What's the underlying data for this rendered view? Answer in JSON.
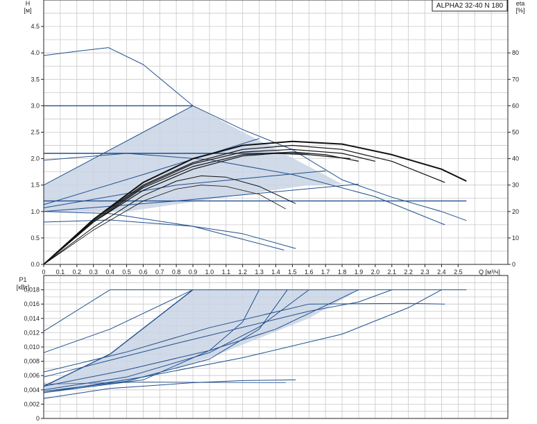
{
  "title": "ALPHA2 32-40 N 180",
  "chart_data": [
    {
      "type": "line",
      "id": "head",
      "ylabel": "H",
      "yunit": "[м]",
      "y2label": "eta",
      "y2unit": "[%]",
      "xlabel": "Q [м³/ч]",
      "xlim": [
        0,
        2.8
      ],
      "ylim": [
        0,
        5.0
      ],
      "y2lim": [
        0,
        100
      ],
      "xticks": [
        "0",
        "0.1",
        "0.2",
        "0.3",
        "0.4",
        "0.5",
        "0.6",
        "0.7",
        "0.8",
        "0.9",
        "1.0",
        "1.1",
        "1.2",
        "1.3",
        "1.4",
        "1.5",
        "1.6",
        "1.7",
        "1.8",
        "1.9",
        "2.0",
        "2.1",
        "2.2",
        "2.3",
        "2.4",
        "2.5"
      ],
      "yticks": [
        "0.0",
        "0.5",
        "1.0",
        "1.5",
        "2.0",
        "2.5",
        "3.0",
        "3.5",
        "4.0",
        "4.5"
      ],
      "y2ticks": [
        "0",
        "10",
        "20",
        "30",
        "40",
        "50",
        "60",
        "70",
        "80"
      ],
      "grid": true,
      "areas": [
        {
          "name": "proportional-pressure-band",
          "points": [
            [
              0,
              1.5
            ],
            [
              0.9,
              3.0
            ],
            [
              1.8,
              1.52
            ],
            [
              1.6,
              1.5
            ],
            [
              0.5,
              1.0
            ],
            [
              0,
              1.0
            ]
          ]
        }
      ],
      "series": [
        {
          "kind": "pump",
          "width": 1.0,
          "points": [
            [
              0,
              3.95
            ],
            [
              0.2,
              4.03
            ],
            [
              0.39,
              4.1
            ],
            [
              0.6,
              3.78
            ],
            [
              0.9,
              3.0
            ],
            [
              1.2,
              2.55
            ],
            [
              1.5,
              2.17
            ],
            [
              1.8,
              1.6
            ],
            [
              2.1,
              1.27
            ],
            [
              2.4,
              1.0
            ],
            [
              2.55,
              0.83
            ]
          ]
        },
        {
          "kind": "pump",
          "width": 1.4,
          "points": [
            [
              0,
              3.0
            ],
            [
              0.9,
              3.0
            ]
          ]
        },
        {
          "kind": "pump",
          "width": 1.4,
          "points": [
            [
              0,
              2.1
            ],
            [
              1.6,
              2.1
            ]
          ]
        },
        {
          "kind": "pump",
          "width": 1.4,
          "points": [
            [
              0,
              1.2
            ],
            [
              2.55,
              1.2
            ]
          ]
        },
        {
          "kind": "pump",
          "width": 1.0,
          "points": [
            [
              0,
              1.5
            ],
            [
              0.9,
              3.0
            ]
          ]
        },
        {
          "kind": "pump",
          "width": 1.0,
          "points": [
            [
              0,
              1.13
            ],
            [
              0.6,
              1.7
            ],
            [
              1.3,
              2.38
            ]
          ]
        },
        {
          "kind": "pump",
          "width": 1.0,
          "points": [
            [
              0,
              1.07
            ],
            [
              0.8,
              1.5
            ],
            [
              1.7,
              1.77
            ]
          ]
        },
        {
          "kind": "pump",
          "width": 1.0,
          "points": [
            [
              0,
              1.0
            ],
            [
              0.8,
              1.2
            ],
            [
              1.9,
              1.52
            ]
          ]
        },
        {
          "kind": "pump",
          "width": 1.0,
          "points": [
            [
              0,
              1.97
            ],
            [
              0.5,
              2.1
            ],
            [
              1.0,
              1.98
            ],
            [
              1.5,
              1.7
            ],
            [
              2.0,
              1.28
            ],
            [
              2.42,
              0.75
            ]
          ]
        },
        {
          "kind": "pump",
          "width": 1.0,
          "points": [
            [
              0,
              0.8
            ],
            [
              0.4,
              0.84
            ],
            [
              0.9,
              0.72
            ],
            [
              1.2,
              0.58
            ],
            [
              1.52,
              0.3
            ]
          ]
        },
        {
          "kind": "pump",
          "width": 1.0,
          "points": [
            [
              0,
              1.0
            ],
            [
              0.4,
              0.96
            ],
            [
              0.9,
              0.72
            ],
            [
              1.45,
              0.27
            ]
          ]
        },
        {
          "kind": "eta",
          "width": 2.0,
          "points": [
            [
              0,
              0
            ],
            [
              0.3,
              17
            ],
            [
              0.6,
              31
            ],
            [
              0.9,
              40
            ],
            [
              1.2,
              45
            ],
            [
              1.5,
              46.5
            ],
            [
              1.8,
              45.5
            ],
            [
              2.1,
              41.5
            ],
            [
              2.4,
              36
            ],
            [
              2.55,
              31.5
            ]
          ]
        },
        {
          "kind": "eta",
          "width": 1.2,
          "points": [
            [
              0,
              0
            ],
            [
              0.3,
              17
            ],
            [
              0.6,
              30
            ],
            [
              0.9,
              38.5
            ],
            [
              1.2,
              43.5
            ],
            [
              1.5,
              45
            ],
            [
              1.8,
              43.5
            ],
            [
              2.1,
              39
            ],
            [
              2.42,
              31
            ]
          ]
        },
        {
          "kind": "eta",
          "width": 1.2,
          "points": [
            [
              0,
              0
            ],
            [
              0.3,
              16.5
            ],
            [
              0.6,
              29.5
            ],
            [
              0.9,
              38
            ],
            [
              1.2,
              42.5
            ],
            [
              1.5,
              43.5
            ],
            [
              1.8,
              42
            ],
            [
              2.0,
              39
            ]
          ]
        },
        {
          "kind": "eta",
          "width": 1.2,
          "points": [
            [
              0,
              0
            ],
            [
              0.3,
              16
            ],
            [
              0.6,
              29
            ],
            [
              0.9,
              37
            ],
            [
              1.2,
              41.5
            ],
            [
              1.5,
              42.5
            ],
            [
              1.7,
              41.5
            ],
            [
              1.9,
              39
            ]
          ]
        },
        {
          "kind": "eta",
          "width": 1.2,
          "points": [
            [
              0,
              0
            ],
            [
              0.3,
              16
            ],
            [
              0.6,
              28
            ],
            [
              0.9,
              36
            ],
            [
              1.2,
              41
            ],
            [
              1.4,
              42
            ],
            [
              1.6,
              41.5
            ],
            [
              1.85,
              40
            ]
          ]
        },
        {
          "kind": "eta",
          "width": 1.0,
          "points": [
            [
              0,
              0
            ],
            [
              0.3,
              14
            ],
            [
              0.6,
              26
            ],
            [
              0.8,
              31.5
            ],
            [
              0.95,
              33.5
            ],
            [
              1.1,
              33
            ],
            [
              1.3,
              29.5
            ],
            [
              1.52,
              23
            ]
          ]
        },
        {
          "kind": "eta",
          "width": 0.8,
          "points": [
            [
              0,
              0
            ],
            [
              0.3,
              13
            ],
            [
              0.6,
              24
            ],
            [
              0.8,
              28.5
            ],
            [
              0.95,
              30
            ],
            [
              1.1,
              29.5
            ],
            [
              1.3,
              26.5
            ],
            [
              1.46,
              21
            ]
          ]
        }
      ]
    },
    {
      "type": "line",
      "id": "power",
      "ylabel": "P1",
      "yunit": "[кВт]",
      "xlim": [
        0,
        2.8
      ],
      "ylim": [
        0,
        0.02
      ],
      "yticks": [
        "0",
        "0,002",
        "0,004",
        "0,006",
        "0,008",
        "0,010",
        "0,012",
        "0,014",
        "0,016",
        "0,018"
      ],
      "grid": true,
      "areas": [
        {
          "name": "proportional-pressure-band",
          "points": [
            [
              0,
              0.0045
            ],
            [
              0.4,
              0.009
            ],
            [
              0.9,
              0.018
            ],
            [
              1.9,
              0.018
            ],
            [
              1.6,
              0.014
            ],
            [
              1.0,
              0.0085
            ],
            [
              0.5,
              0.005
            ],
            [
              0,
              0.0037
            ]
          ]
        }
      ],
      "series": [
        {
          "kind": "power",
          "width": 1.0,
          "points": [
            [
              0,
              0.0122
            ],
            [
              0.4,
              0.018
            ]
          ]
        },
        {
          "kind": "power",
          "width": 1.0,
          "points": [
            [
              0.4,
              0.018
            ],
            [
              2.55,
              0.018
            ]
          ]
        },
        {
          "kind": "power",
          "width": 1.0,
          "points": [
            [
              0,
              0.0092
            ],
            [
              0.4,
              0.0125
            ],
            [
              0.9,
              0.018
            ]
          ]
        },
        {
          "kind": "power",
          "width": 1.0,
          "points": [
            [
              0,
              0.0065
            ],
            [
              0.5,
              0.0093
            ],
            [
              1.0,
              0.0127
            ],
            [
              1.6,
              0.016
            ],
            [
              2.2,
              0.0161
            ],
            [
              2.42,
              0.016
            ]
          ]
        },
        {
          "kind": "power",
          "width": 1.0,
          "points": [
            [
              0,
              0.0058
            ],
            [
              0.8,
              0.0105
            ],
            [
              1.6,
              0.015
            ],
            [
              1.9,
              0.0163
            ],
            [
              2.1,
              0.018
            ]
          ]
        },
        {
          "kind": "power",
          "width": 1.0,
          "points": [
            [
              0,
              0.0045
            ],
            [
              0.5,
              0.0068
            ],
            [
              1.0,
              0.0095
            ],
            [
              1.4,
              0.0125
            ],
            [
              1.9,
              0.018
            ]
          ]
        },
        {
          "kind": "power",
          "width": 1.4,
          "points": [
            [
              0,
              0.0045
            ],
            [
              0.4,
              0.009
            ],
            [
              0.9,
              0.018
            ]
          ]
        },
        {
          "kind": "power",
          "width": 1.0,
          "points": [
            [
              0,
              0.004
            ],
            [
              0.5,
              0.0058
            ],
            [
              1.0,
              0.0092
            ],
            [
              1.3,
              0.0128
            ],
            [
              1.6,
              0.018
            ]
          ]
        },
        {
          "kind": "power",
          "width": 1.0,
          "points": [
            [
              0,
              0.0038
            ],
            [
              0.5,
              0.0052
            ],
            [
              1.0,
              0.0083
            ],
            [
              1.3,
              0.0125
            ],
            [
              1.47,
              0.018
            ]
          ]
        },
        {
          "kind": "power",
          "width": 1.0,
          "points": [
            [
              0,
              0.0036
            ],
            [
              0.6,
              0.0054
            ],
            [
              1.0,
              0.0095
            ],
            [
              1.2,
              0.0135
            ],
            [
              1.3,
              0.018
            ]
          ]
        },
        {
          "kind": "power",
          "width": 1.0,
          "points": [
            [
              0,
              0.0036
            ],
            [
              0.6,
              0.0058
            ],
            [
              1.2,
              0.0085
            ],
            [
              1.8,
              0.0118
            ],
            [
              2.2,
              0.0155
            ],
            [
              2.4,
              0.018
            ]
          ]
        },
        {
          "kind": "power",
          "width": 1.0,
          "points": [
            [
              0,
              0.0028
            ],
            [
              0.4,
              0.0042
            ],
            [
              0.9,
              0.005
            ],
            [
              1.2,
              0.0053
            ],
            [
              1.52,
              0.0054
            ]
          ]
        },
        {
          "kind": "power",
          "width": 0.7,
          "points": [
            [
              0,
              0.0048
            ],
            [
              0.6,
              0.0051
            ],
            [
              1.46,
              0.005
            ]
          ]
        }
      ]
    }
  ]
}
